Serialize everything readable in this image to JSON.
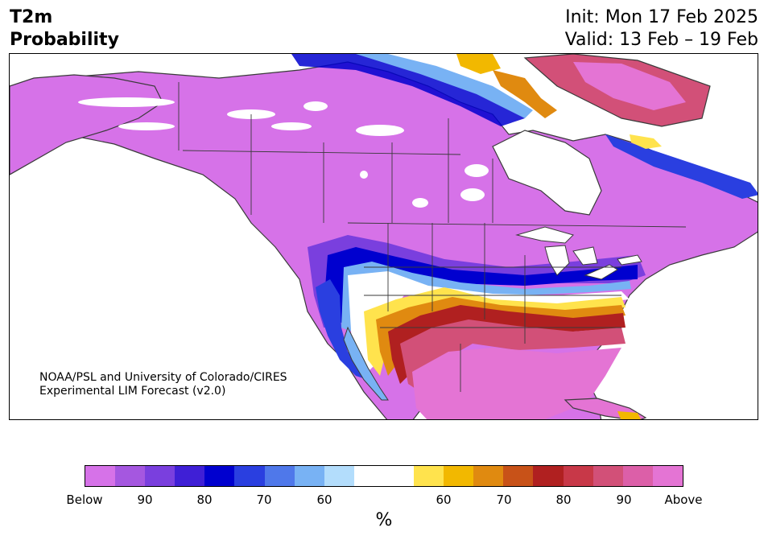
{
  "header": {
    "variable": "T2m",
    "product": "Probability",
    "init": "Init: Mon 17 Feb 2025",
    "valid": "Valid: 13 Feb – 19 Feb"
  },
  "credit": {
    "line1": "NOAA/PSL and University of Colorado/CIRES",
    "line2": "Experimental LIM Forecast (v2.0)"
  },
  "colorbar": {
    "colors": [
      "#d672e8",
      "#a557e0",
      "#7a3fde",
      "#3f1fd6",
      "#0000cf",
      "#2a3fe0",
      "#4f78ea",
      "#78b2f4",
      "#b3ddfc",
      "#ffffff",
      "#ffffff",
      "#ffe34d",
      "#f2b800",
      "#e08a10",
      "#c85218",
      "#b02020",
      "#c83848",
      "#d25078",
      "#dc5fa8",
      "#e474d4"
    ],
    "tick_labels": [
      "Below",
      "90",
      "80",
      "70",
      "60",
      "60",
      "70",
      "80",
      "90",
      "Above"
    ],
    "unit": "%"
  },
  "map": {
    "region": "North America",
    "palette": {
      "below_strong": "#d672e8",
      "below_90": "#a557e0",
      "below_80": "#3f1fd6",
      "below_70": "#2a3fe0",
      "below_60": "#78b2f4",
      "near_normal": "#ffffff",
      "above_60": "#ffe34d",
      "above_70": "#e08a10",
      "above_80": "#b02020",
      "above_strong": "#e474d4",
      "border": "#3a3a3a"
    }
  }
}
